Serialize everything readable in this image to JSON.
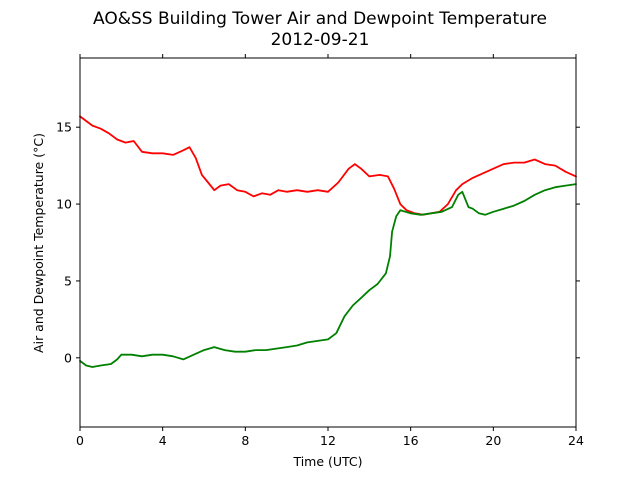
{
  "chart_data": {
    "type": "line",
    "title": "AO&SS Building Tower Air and Dewpoint Temperature",
    "subtitle": "2012-09-21",
    "xlabel": "Time (UTC)",
    "ylabel": "Air and Dewpoint Temperature (°C)",
    "xlim": [
      0,
      24
    ],
    "ylim": [
      -4.5,
      19.5
    ],
    "xticks": [
      0,
      4,
      8,
      12,
      16,
      20,
      24
    ],
    "yticks": [
      0,
      5,
      10,
      15
    ],
    "grid": false,
    "legend": "none",
    "series": [
      {
        "color": "#ff0000",
        "x": [
          0,
          0.3,
          0.6,
          1.0,
          1.4,
          1.8,
          2.2,
          2.6,
          3.0,
          3.5,
          4.0,
          4.5,
          5.0,
          5.3,
          5.6,
          5.9,
          6.2,
          6.5,
          6.8,
          7.2,
          7.6,
          8.0,
          8.4,
          8.8,
          9.2,
          9.6,
          10.0,
          10.5,
          11.0,
          11.5,
          12.0,
          12.5,
          13.0,
          13.3,
          13.6,
          14.0,
          14.5,
          14.9,
          15.2,
          15.5,
          15.8,
          16.2,
          16.6,
          17.0,
          17.4,
          17.8,
          18.2,
          18.5,
          19.0,
          19.5,
          20.0,
          20.5,
          21.0,
          21.5,
          22.0,
          22.5,
          23.0,
          23.5,
          24.0
        ],
        "y": [
          15.7,
          15.4,
          15.1,
          14.9,
          14.6,
          14.2,
          14.0,
          14.1,
          13.4,
          13.3,
          13.3,
          13.2,
          13.5,
          13.7,
          13.0,
          11.9,
          11.4,
          10.9,
          11.2,
          11.3,
          10.9,
          10.8,
          10.5,
          10.7,
          10.6,
          10.9,
          10.8,
          10.9,
          10.8,
          10.9,
          10.8,
          11.4,
          12.3,
          12.6,
          12.3,
          11.8,
          11.9,
          11.8,
          11.0,
          10.0,
          9.6,
          9.4,
          9.3,
          9.4,
          9.5,
          10.0,
          10.9,
          11.3,
          11.7,
          12.0,
          12.3,
          12.6,
          12.7,
          12.7,
          12.9,
          12.6,
          12.5,
          12.1,
          11.8
        ]
      },
      {
        "color": "#008000",
        "x": [
          0,
          0.3,
          0.6,
          1.0,
          1.5,
          1.8,
          2.0,
          2.5,
          3.0,
          3.5,
          4.0,
          4.5,
          5.0,
          5.5,
          6.0,
          6.5,
          7.0,
          7.5,
          8.0,
          8.5,
          9.0,
          9.5,
          10.0,
          10.5,
          11.0,
          11.5,
          12.0,
          12.4,
          12.8,
          13.2,
          13.6,
          14.0,
          14.4,
          14.8,
          15.0,
          15.1,
          15.3,
          15.5,
          16.0,
          16.5,
          17.0,
          17.5,
          18.0,
          18.3,
          18.5,
          18.8,
          19.0,
          19.3,
          19.6,
          20.0,
          20.5,
          21.0,
          21.5,
          22.0,
          22.5,
          23.0,
          23.5,
          24.0
        ],
        "y": [
          -0.2,
          -0.5,
          -0.6,
          -0.5,
          -0.4,
          -0.1,
          0.2,
          0.2,
          0.1,
          0.2,
          0.2,
          0.1,
          -0.1,
          0.2,
          0.5,
          0.7,
          0.5,
          0.4,
          0.4,
          0.5,
          0.5,
          0.6,
          0.7,
          0.8,
          1.0,
          1.1,
          1.2,
          1.6,
          2.7,
          3.4,
          3.9,
          4.4,
          4.8,
          5.5,
          6.6,
          8.2,
          9.2,
          9.6,
          9.4,
          9.3,
          9.4,
          9.5,
          9.8,
          10.6,
          10.8,
          9.8,
          9.7,
          9.4,
          9.3,
          9.5,
          9.7,
          9.9,
          10.2,
          10.6,
          10.9,
          11.1,
          11.2,
          11.3
        ]
      }
    ]
  }
}
